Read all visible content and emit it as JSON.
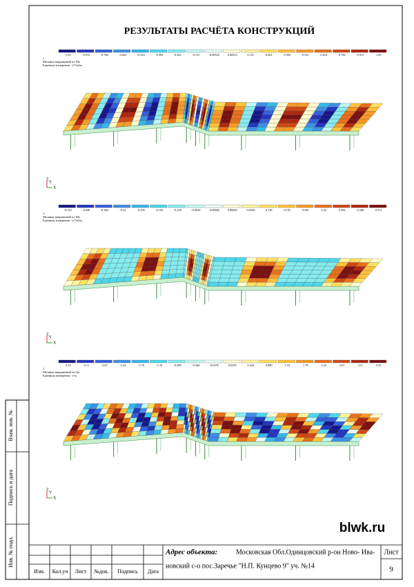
{
  "header": {
    "title": "РЕЗУЛЬТАТЫ РАСЧЁТА КОНСТРУКЦИЙ"
  },
  "legend_colors": [
    "#16168a",
    "#2536c0",
    "#3461dc",
    "#3f8fe6",
    "#36b8ea",
    "#4fd6ea",
    "#86ecee",
    "#c2f7f4",
    "#e8fbf8",
    "#fffbd0",
    "#fff29a",
    "#ffe060",
    "#ffc23c",
    "#f79a28",
    "#e8701c",
    "#d14814",
    "#b02810",
    "#7c1010"
  ],
  "plots": [
    {
      "number": "1",
      "caption": "Мозаика напряжений по Mx",
      "units": "Единицы измерения - (т*м)/м",
      "scale": [
        "-1.05",
        "-0.913",
        "-0.784",
        "-0.654",
        "-0.523",
        "-0.392",
        "-0.261",
        "-0.131",
        "-0.00523",
        "0.00523",
        "0.131",
        "0.261",
        "0.392",
        "0.523",
        "0.654",
        "0.784",
        "0.913",
        "1.05"
      ],
      "axes": [
        "Z",
        "Y",
        "X"
      ]
    },
    {
      "number": "1",
      "caption": "Мозаика напряжений по My",
      "units": "Единицы измерения - (т*м)/м",
      "scale": [
        "-0.512",
        "-0.448",
        "-0.384",
        "-0.32",
        "-0.256",
        "-0.192",
        "-0.128",
        "-0.0639",
        "-0.00682",
        "0.00682",
        "0.0639",
        "0.128",
        "0.192",
        "0.256",
        "0.32",
        "0.384",
        "0.448",
        "0.512"
      ],
      "axes": [
        "Z",
        "Y",
        "X"
      ]
    },
    {
      "number": "1",
      "caption": "Мозаика напряжений по Qx",
      "units": "Единицы измерения - т/м",
      "scale": [
        "-3.55",
        "-3.11",
        "-2.67",
        "-2.22",
        "-1.78",
        "-1.33",
        "-0.889",
        "-0.444",
        "-0.0355",
        "0.0355",
        "0.444",
        "0.889",
        "1.33",
        "1.78",
        "2.22",
        "2.67",
        "3.11",
        "3.55"
      ],
      "axes": [
        "Z",
        "Y",
        "X"
      ]
    }
  ],
  "side_stamp": [
    "Взам. инв. №",
    "Подпись и дата",
    "Инв. № подл."
  ],
  "title_block": {
    "columns": [
      "Изм.",
      "Кол.уч",
      "Лист",
      "№док.",
      "Подпись",
      "Дата"
    ],
    "address_label": "Адрес объекта:",
    "address_line1": "Московская  Обл.Одинцовский р-он  Ново- Ива-",
    "address_line2": "новский с-о пос.Заречье  \"Н.П. Кунцево 9\" уч. №14",
    "sheet_label": "Лист",
    "sheet_number": "9"
  },
  "watermark": "blwk.ru"
}
